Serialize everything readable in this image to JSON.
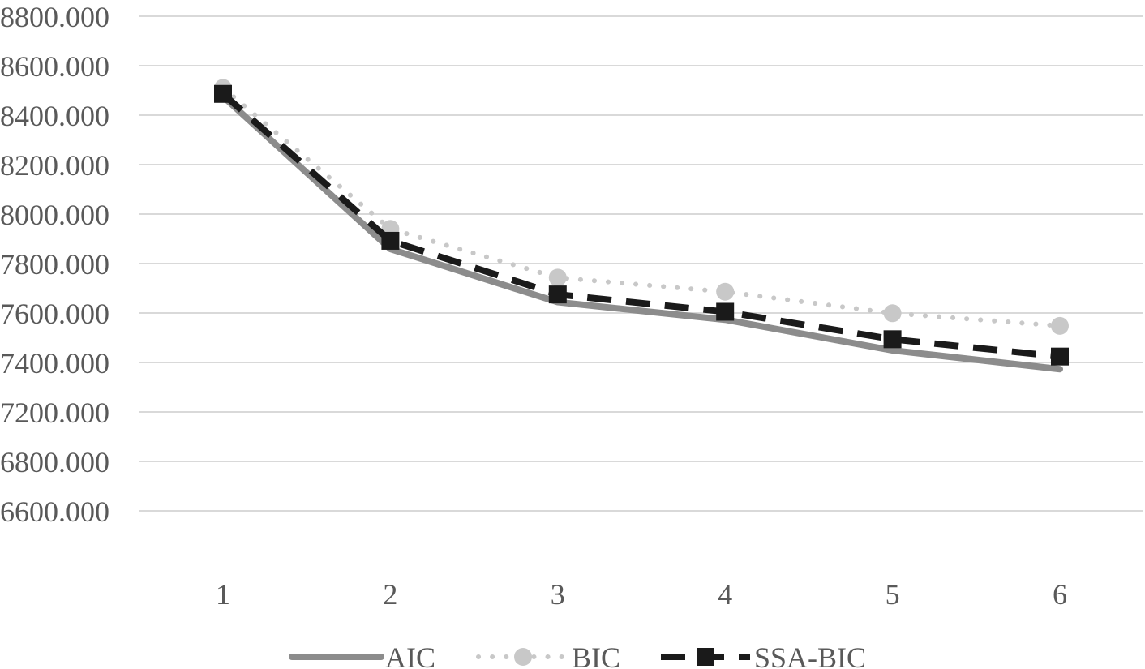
{
  "chart_data": {
    "type": "line",
    "x": [
      1,
      2,
      3,
      4,
      5,
      6
    ],
    "x_tick_labels": [
      "1",
      "2",
      "3",
      "4",
      "5",
      "6"
    ],
    "y_tick_labels": [
      "8800.000",
      "8600.000",
      "8400.000",
      "8200.000",
      "8000.000",
      "7800.000",
      "7600.000",
      "7400.000",
      "7200.000",
      "6800.000",
      "6600.000"
    ],
    "series": [
      {
        "name": "AIC",
        "values": [
          8476,
          7859,
          7644,
          7573,
          7449,
          7373
        ],
        "color": "#8c8c8c",
        "style": "solid",
        "marker": "none"
      },
      {
        "name": "BIC",
        "values": [
          8510,
          7940,
          7743,
          7686,
          7599,
          7548
        ],
        "color": "#c8c8c8",
        "style": "dotted",
        "marker": "circle"
      },
      {
        "name": "SSA-BIC",
        "values": [
          8486,
          7892,
          7675,
          7605,
          7494,
          7424
        ],
        "color": "#1a1a1a",
        "style": "dashed",
        "marker": "square"
      }
    ],
    "grid": true,
    "legend_position": "bottom"
  }
}
